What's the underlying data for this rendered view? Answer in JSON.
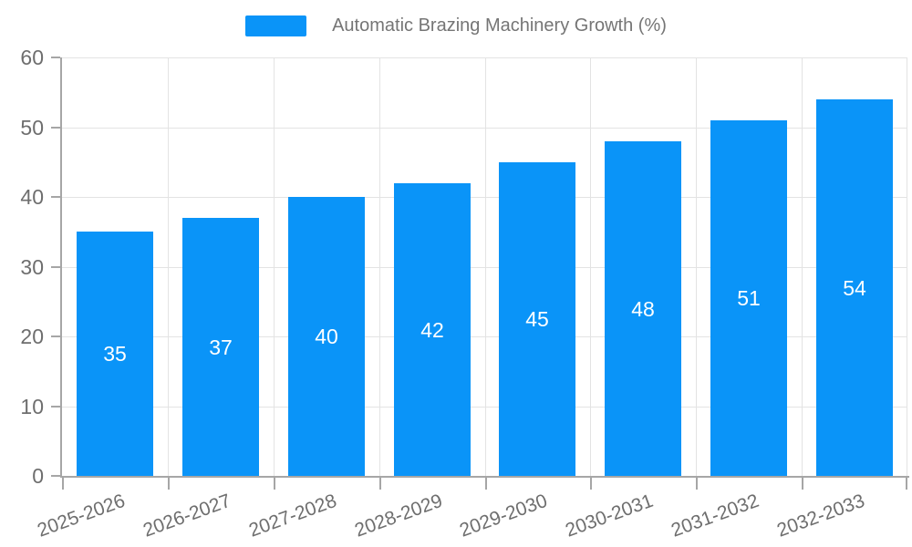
{
  "chart_data": {
    "type": "bar",
    "title": "Automatic Brazing Machinery Growth (%)",
    "legend_label": "Automatic Brazing Machinery Growth (%)",
    "legend_position": "top",
    "categories": [
      "2025-2026",
      "2026-2027",
      "2027-2028",
      "2028-2029",
      "2029-2030",
      "2030-2031",
      "2031-2032",
      "2032-2033"
    ],
    "values": [
      35,
      37,
      40,
      42,
      45,
      48,
      51,
      54
    ],
    "xlabel": "",
    "ylabel": "",
    "ylim": [
      0,
      60
    ],
    "yticks": [
      0,
      10,
      20,
      30,
      40,
      50,
      60
    ],
    "grid": true,
    "bar_value_labels_shown": true,
    "colors": {
      "bar": "#0a94f8",
      "bar_value_label": "#ffffff",
      "axis_line": "#a6a6a6",
      "tick": "#a6a6a6",
      "gridline": "#e3e3e3",
      "axis_text": "#6e6e6e",
      "legend_text": "#757575",
      "background": "#ffffff"
    }
  }
}
